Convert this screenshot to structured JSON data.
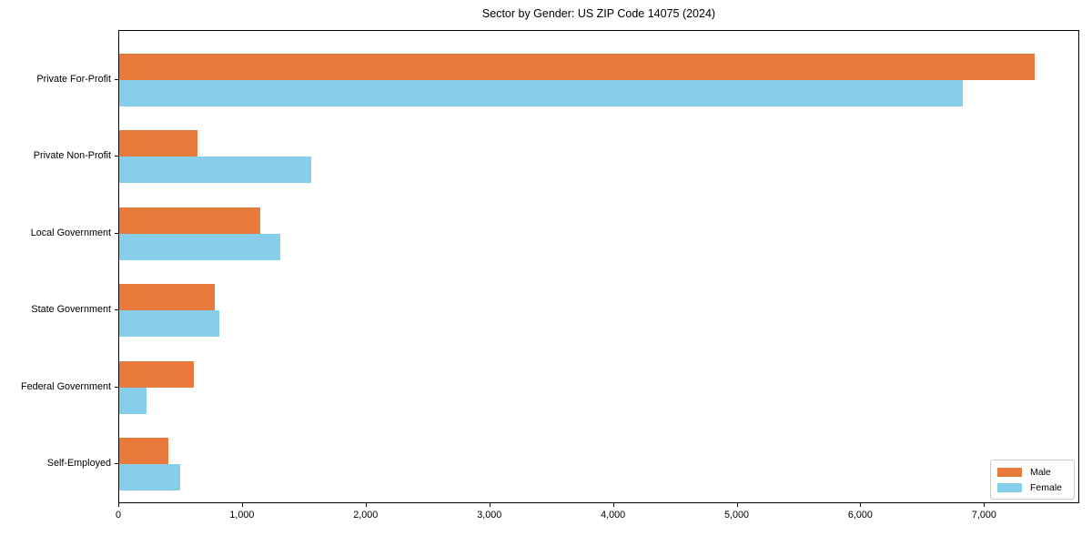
{
  "chart_data": {
    "type": "bar",
    "orientation": "horizontal",
    "title": "Sector by Gender: US ZIP Code 14075 (2024)",
    "categories": [
      "Private For-Profit",
      "Private Non-Profit",
      "Local Government",
      "State Government",
      "Federal Government",
      "Self-Employed"
    ],
    "series": [
      {
        "name": "Male",
        "color": "#e87a3c",
        "values": [
          7400,
          630,
          1140,
          770,
          600,
          400
        ]
      },
      {
        "name": "Female",
        "color": "#87ceeb",
        "values": [
          6820,
          1550,
          1300,
          810,
          220,
          490
        ]
      }
    ],
    "xlabel": "",
    "ylabel": "",
    "xlim": [
      0,
      7770
    ],
    "x_ticks": [
      0,
      1000,
      2000,
      3000,
      4000,
      5000,
      6000,
      7000
    ],
    "x_tick_labels": [
      "0",
      "1,000",
      "2,000",
      "3,000",
      "4,000",
      "5,000",
      "6,000",
      "7,000"
    ],
    "grid": false,
    "legend_position": "lower right",
    "background_color": "#ffffff",
    "axis_color": "#000000"
  }
}
